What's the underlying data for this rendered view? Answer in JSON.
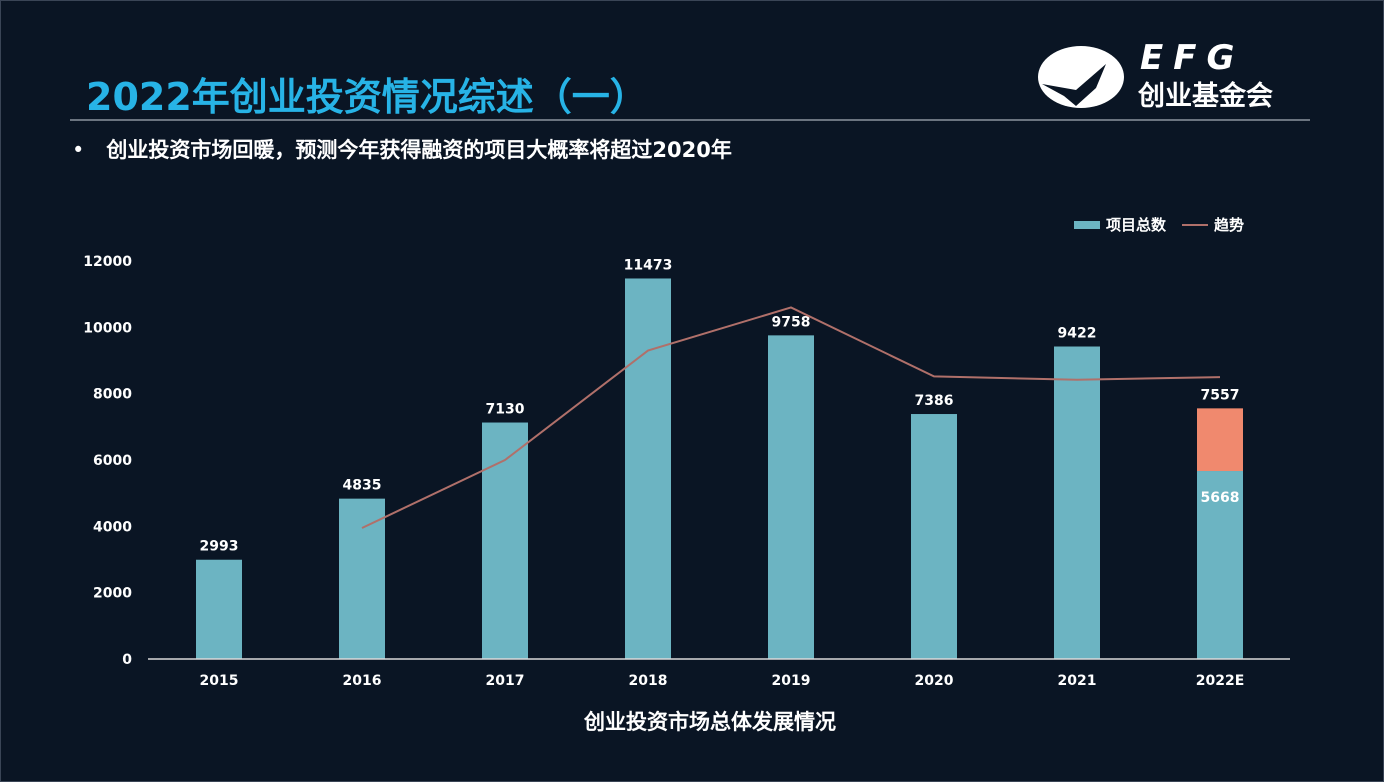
{
  "header": {
    "title": "2022年创业投资情况综述（一）",
    "bullet": "创业投资市场回暖，预测今年获得融资的项目大概率将超过2020年",
    "logo": {
      "text": "EFG",
      "subtext": "创业基金会"
    }
  },
  "colors": {
    "background": "#0a1524",
    "title": "#27b3e6",
    "bar": "#6cb4c2",
    "forecast": "#f0896e",
    "trend": "#b0706a"
  },
  "chart_data": {
    "type": "bar",
    "title": "",
    "xlabel": "创业投资市场总体发展情况",
    "ylabel": "",
    "ylim": [
      0,
      12000
    ],
    "yticks": [
      "0",
      "2000",
      "4000",
      "6000",
      "8000",
      "10000",
      "12000"
    ],
    "grid": false,
    "legend_position": "top-right",
    "categories": [
      "2015",
      "2016",
      "2017",
      "2018",
      "2019",
      "2020",
      "2021",
      "2022E"
    ],
    "series": [
      {
        "name": "项目总数",
        "type": "bar",
        "values": [
          2993,
          4835,
          7130,
          11473,
          9758,
          7386,
          9422,
          5668
        ],
        "labels": [
          "2993",
          "4835",
          "7130",
          "11473",
          "9758",
          "7386",
          "9422",
          "5668"
        ]
      },
      {
        "name": "",
        "type": "bar-stack-forecast",
        "values": [
          null,
          null,
          null,
          null,
          null,
          null,
          null,
          1889
        ],
        "total_label": "7557"
      },
      {
        "name": "趋势",
        "type": "line",
        "values": [
          null,
          3950,
          6000,
          9300,
          10600,
          8520,
          8420,
          8500
        ]
      }
    ]
  }
}
